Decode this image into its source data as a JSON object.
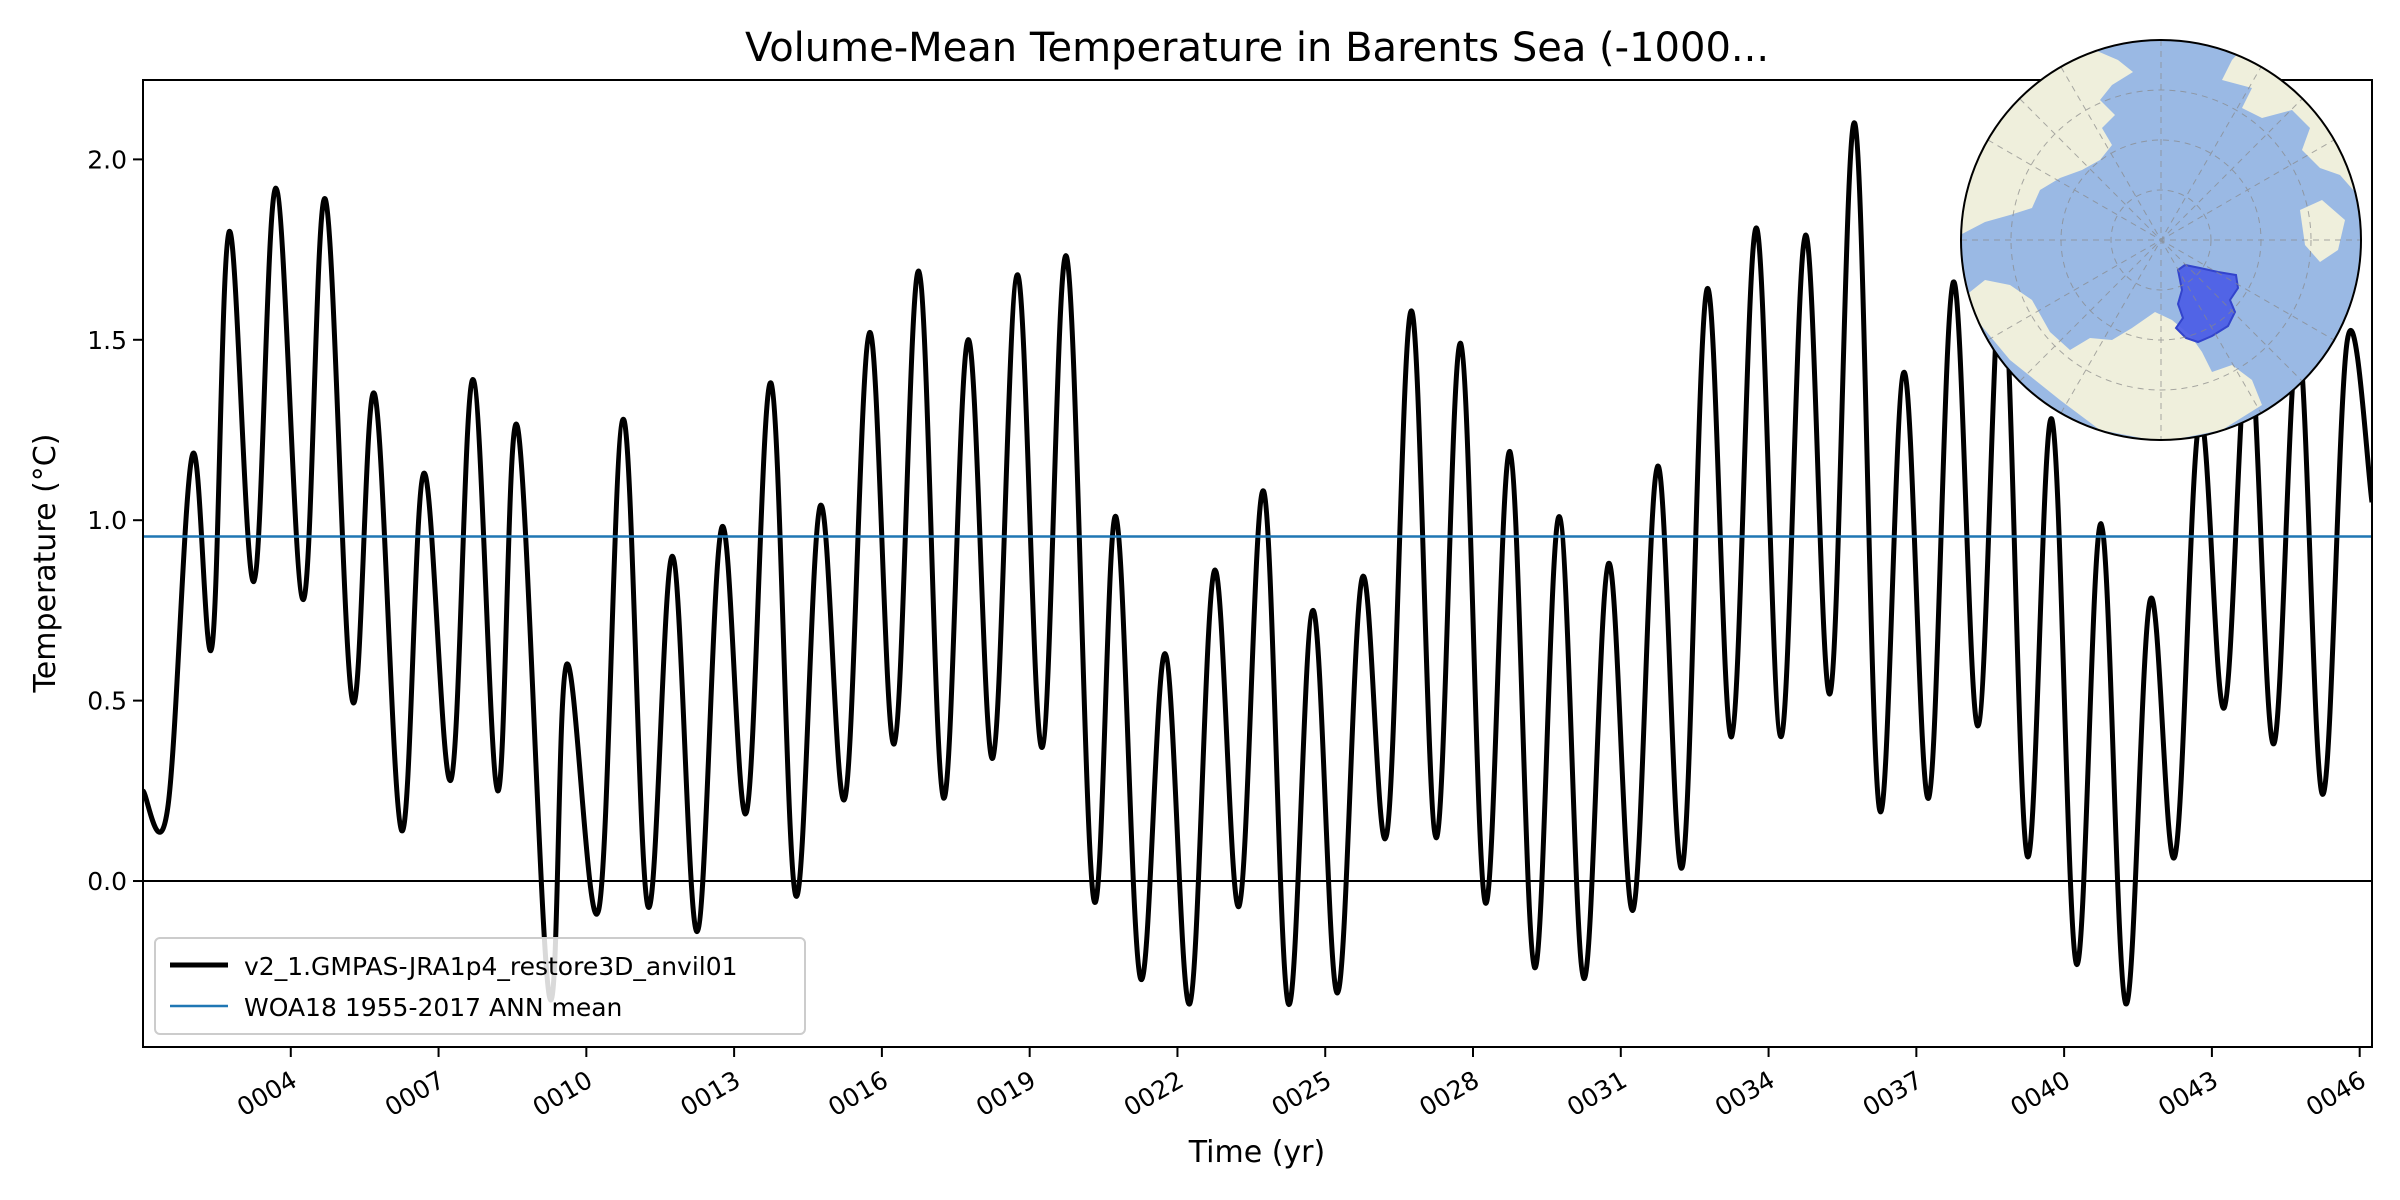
{
  "chart_data": {
    "type": "line",
    "title": "Volume-Mean Temperature in Barents Sea (-1000...",
    "xlabel": "Time (yr)",
    "ylabel": "Temperature (°C)",
    "xlim": [
      1.0,
      46.25
    ],
    "ylim": [
      -0.46,
      2.22
    ],
    "yticks": [
      0.0,
      0.5,
      1.0,
      1.5,
      2.0
    ],
    "ytick_labels": [
      "0.0",
      "0.5",
      "1.0",
      "1.5",
      "2.0"
    ],
    "xticks": [
      4,
      7,
      10,
      13,
      16,
      19,
      22,
      25,
      28,
      31,
      34,
      37,
      40,
      43,
      46
    ],
    "xtick_labels": [
      "0004",
      "0007",
      "0010",
      "0013",
      "0016",
      "0019",
      "0022",
      "0025",
      "0028",
      "0031",
      "0034",
      "0037",
      "0040",
      "0043",
      "0046"
    ],
    "grid": false,
    "legend_position": "lower-left",
    "series": [
      {
        "name": "v2_1.GMPAS-JRA1p4_restore3D_anvil01",
        "color": "#000000",
        "x": [
          1.0,
          1.5,
          2.0,
          2.4,
          2.75,
          3.25,
          3.7,
          4.25,
          4.7,
          5.25,
          5.7,
          6.25,
          6.7,
          7.25,
          7.7,
          8.2,
          8.6,
          9.25,
          9.6,
          10.25,
          10.75,
          11.25,
          11.75,
          12.25,
          12.75,
          13.25,
          13.75,
          14.25,
          14.75,
          15.25,
          15.75,
          16.25,
          16.75,
          17.25,
          17.75,
          18.25,
          18.75,
          19.25,
          19.75,
          20.3,
          20.75,
          21.25,
          21.75,
          22.25,
          22.75,
          23.25,
          23.75,
          24.25,
          24.75,
          25.25,
          25.75,
          26.25,
          26.75,
          27.25,
          27.75,
          28.25,
          28.75,
          29.25,
          29.75,
          30.25,
          30.75,
          31.25,
          31.75,
          32.25,
          32.75,
          33.25,
          33.75,
          34.25,
          34.75,
          35.25,
          35.75,
          36.25,
          36.75,
          37.25,
          37.75,
          38.25,
          38.75,
          39.25,
          39.75,
          40.25,
          40.75,
          41.25,
          41.75,
          42.25,
          42.75,
          43.25,
          43.75,
          44.25,
          44.75,
          45.25,
          45.75,
          46.25
        ],
        "y": [
          0.25,
          0.2,
          1.18,
          0.65,
          1.8,
          0.83,
          1.92,
          0.78,
          1.89,
          0.5,
          1.35,
          0.14,
          1.13,
          0.28,
          1.39,
          0.25,
          1.26,
          -0.32,
          0.6,
          -0.08,
          1.28,
          -0.07,
          0.9,
          -0.14,
          0.98,
          0.19,
          1.38,
          -0.04,
          1.04,
          0.23,
          1.52,
          0.38,
          1.69,
          0.23,
          1.5,
          0.34,
          1.68,
          0.37,
          1.73,
          -0.05,
          1.01,
          -0.27,
          0.63,
          -0.34,
          0.86,
          -0.07,
          1.08,
          -0.34,
          0.75,
          -0.31,
          0.84,
          0.13,
          1.58,
          0.12,
          1.49,
          -0.06,
          1.19,
          -0.24,
          1.01,
          -0.27,
          0.88,
          -0.08,
          1.15,
          0.04,
          1.64,
          0.4,
          1.81,
          0.4,
          1.79,
          0.52,
          2.1,
          0.2,
          1.41,
          0.23,
          1.66,
          0.43,
          1.7,
          0.07,
          1.28,
          -0.23,
          0.99,
          -0.34,
          0.78,
          0.07,
          1.28,
          0.48,
          1.5,
          0.38,
          1.5,
          0.24,
          1.5,
          1.05
        ]
      },
      {
        "name": "WOA18 1955-2017 ANN mean",
        "color": "#1f77b4",
        "constant": 0.955
      }
    ],
    "reference_line": {
      "y": 0.0,
      "color": "#000000"
    },
    "inset": {
      "type": "polar-map",
      "ocean_color": "#9ab9e4",
      "land_color": "#efefdc",
      "region_color": "#4b5ce6"
    }
  }
}
